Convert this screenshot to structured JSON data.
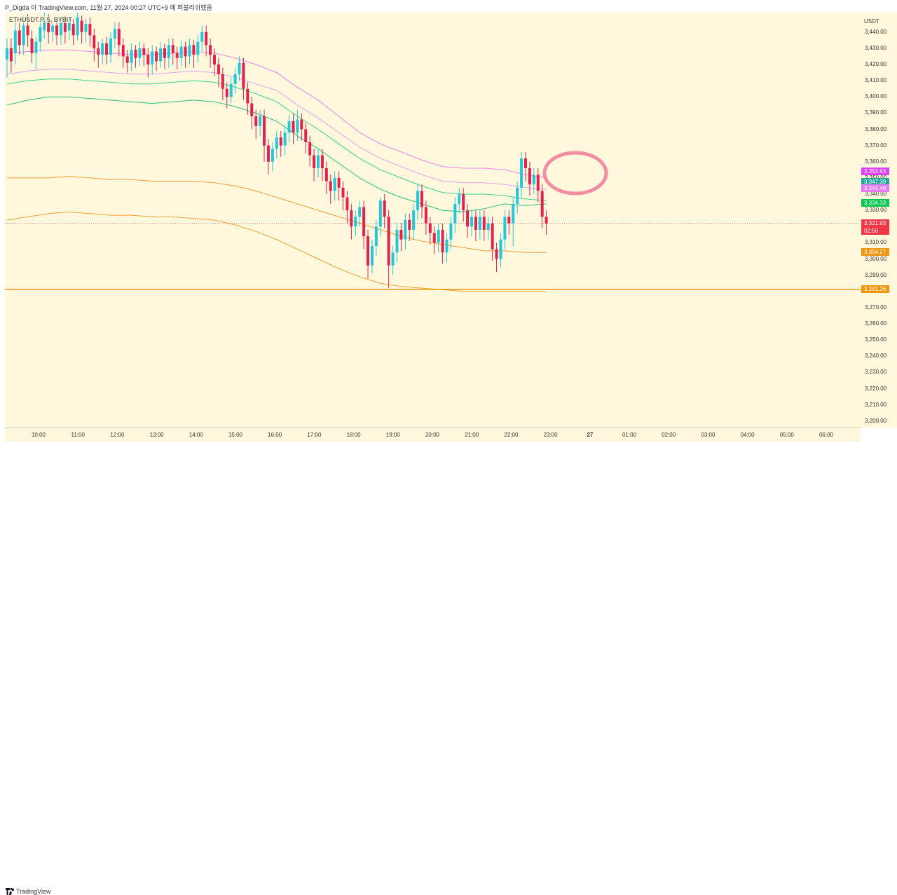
{
  "header": {
    "text": "P_Digda 이 TradingView.com, 11월 27, 2024 00:27 UTC+9 에 퍼블리쉬했음"
  },
  "symbol": {
    "text": "ETHUSDT.P, 5, BYBIT"
  },
  "currency": "USDT",
  "footer": {
    "brand": "TradingView"
  },
  "chart_data": {
    "type": "candlestick",
    "interval": "5",
    "ylim": [
      3196,
      3452
    ],
    "y_ticks": [
      "3,440.00",
      "3,430.00",
      "3,420.00",
      "3,410.00",
      "3,400.00",
      "3,390.00",
      "3,380.00",
      "3,370.00",
      "3,360.00",
      "3,350.00",
      "3,340.00",
      "3,330.00",
      "3,310.00",
      "3,300.00",
      "3,290.00",
      "3,270.00",
      "3,260.00",
      "3,250.00",
      "3,240.00",
      "3,230.00",
      "3,220.00",
      "3,210.00",
      "3,200.00"
    ],
    "x_ticks": [
      "10:00",
      "11:00",
      "12:00",
      "13:00",
      "14:00",
      "15:00",
      "16:00",
      "17:00",
      "18:00",
      "19:00",
      "20:00",
      "21:00",
      "22:00",
      "23:00",
      "27",
      "01:00",
      "02:00",
      "03:00",
      "04:00",
      "05:00",
      "06:00"
    ],
    "price_badges": [
      {
        "label": "3,353.63",
        "value": 3353.63,
        "color": "#e040fb"
      },
      {
        "label": "3,347.39",
        "value": 3347.39,
        "color": "#26a69a"
      },
      {
        "label": "3,343.48",
        "value": 3343.48,
        "color": "#e879f9"
      },
      {
        "label": "3,334.33",
        "value": 3334.33,
        "color": "#00c853"
      },
      {
        "label": "3,321.93",
        "sub": "02:50",
        "value": 3321.93,
        "color": "#f23645"
      },
      {
        "label": "3,304.27",
        "value": 3304.27,
        "color": "#f0950c"
      },
      {
        "label": "3,281.26",
        "value": 3281.26,
        "color": "#f0950c"
      }
    ],
    "horizontal_line": {
      "value": 3281.26,
      "color": "#f0950c"
    },
    "last_price_line": {
      "value": 3321.93
    },
    "colors": {
      "up": "#26c6da",
      "down": "#e0234e",
      "upper_band": "#ee82ee",
      "mid_band": "#3fd18a",
      "orange_band": "#f0a030",
      "highlight_circle": "#f07a9a"
    },
    "candles": [
      [
        3423,
        3430,
        3418,
        3436,
        3412
      ],
      [
        3430,
        3422,
        3418,
        3436,
        3415
      ],
      [
        3427,
        3441,
        3424,
        3449,
        3420
      ],
      [
        3441,
        3432,
        3430,
        3446,
        3426
      ],
      [
        3432,
        3444,
        3428,
        3450,
        3426
      ],
      [
        3444,
        3438,
        3433,
        3451,
        3431
      ],
      [
        3436,
        3427,
        3423,
        3441,
        3421
      ],
      [
        3427,
        3434,
        3422,
        3437,
        3417
      ],
      [
        3434,
        3443,
        3431,
        3447,
        3428
      ],
      [
        3441,
        3448,
        3438,
        3452,
        3436
      ],
      [
        3446,
        3440,
        3436,
        3451,
        3433
      ],
      [
        3440,
        3444,
        3437,
        3448,
        3434
      ],
      [
        3444,
        3438,
        3434,
        3448,
        3432
      ],
      [
        3438,
        3446,
        3435,
        3450,
        3432
      ],
      [
        3446,
        3440,
        3436,
        3450,
        3433
      ],
      [
        3441,
        3446,
        3438,
        3449,
        3435
      ],
      [
        3445,
        3438,
        3434,
        3448,
        3432
      ],
      [
        3438,
        3449,
        3437,
        3452,
        3435
      ],
      [
        3447,
        3440,
        3436,
        3450,
        3433
      ],
      [
        3440,
        3445,
        3438,
        3448,
        3434
      ],
      [
        3445,
        3438,
        3433,
        3449,
        3431
      ],
      [
        3438,
        3430,
        3427,
        3442,
        3422
      ],
      [
        3430,
        3426,
        3421,
        3434,
        3418
      ],
      [
        3426,
        3433,
        3423,
        3436,
        3420
      ],
      [
        3433,
        3426,
        3422,
        3437,
        3420
      ],
      [
        3426,
        3436,
        3424,
        3440,
        3421
      ],
      [
        3436,
        3442,
        3433,
        3446,
        3430
      ],
      [
        3442,
        3432,
        3428,
        3446,
        3425
      ],
      [
        3432,
        3425,
        3421,
        3436,
        3418
      ],
      [
        3425,
        3421,
        3418,
        3429,
        3415
      ],
      [
        3421,
        3429,
        3419,
        3433,
        3416
      ],
      [
        3429,
        3424,
        3421,
        3432,
        3418
      ],
      [
        3424,
        3430,
        3422,
        3434,
        3419
      ],
      [
        3430,
        3426,
        3422,
        3433,
        3419
      ],
      [
        3426,
        3420,
        3416,
        3430,
        3412
      ],
      [
        3420,
        3428,
        3418,
        3432,
        3414
      ],
      [
        3428,
        3422,
        3418,
        3431,
        3416
      ],
      [
        3422,
        3430,
        3420,
        3434,
        3418
      ],
      [
        3430,
        3424,
        3420,
        3433,
        3417
      ],
      [
        3424,
        3432,
        3422,
        3436,
        3418
      ],
      [
        3432,
        3427,
        3423,
        3436,
        3420
      ],
      [
        3427,
        3424,
        3420,
        3431,
        3417
      ],
      [
        3424,
        3431,
        3422,
        3435,
        3419
      ],
      [
        3431,
        3425,
        3421,
        3434,
        3418
      ],
      [
        3425,
        3432,
        3423,
        3436,
        3420
      ],
      [
        3432,
        3426,
        3421,
        3435,
        3418
      ],
      [
        3426,
        3434,
        3424,
        3438,
        3421
      ],
      [
        3434,
        3440,
        3431,
        3444,
        3428
      ],
      [
        3440,
        3432,
        3428,
        3444,
        3425
      ],
      [
        3432,
        3426,
        3422,
        3436,
        3418
      ],
      [
        3426,
        3420,
        3416,
        3430,
        3413
      ],
      [
        3420,
        3414,
        3410,
        3424,
        3406
      ],
      [
        3414,
        3405,
        3402,
        3418,
        3398
      ],
      [
        3405,
        3400,
        3396,
        3409,
        3393
      ],
      [
        3400,
        3408,
        3398,
        3412,
        3396
      ],
      [
        3408,
        3414,
        3405,
        3418,
        3402
      ],
      [
        3414,
        3421,
        3412,
        3425,
        3410
      ],
      [
        3421,
        3405,
        3402,
        3424,
        3398
      ],
      [
        3405,
        3396,
        3392,
        3409,
        3389
      ],
      [
        3396,
        3388,
        3384,
        3400,
        3380
      ],
      [
        3388,
        3382,
        3378,
        3392,
        3374
      ],
      [
        3382,
        3388,
        3379,
        3392,
        3376
      ],
      [
        3388,
        3370,
        3366,
        3392,
        3360
      ],
      [
        3370,
        3360,
        3356,
        3374,
        3352
      ],
      [
        3360,
        3368,
        3357,
        3372,
        3354
      ],
      [
        3368,
        3375,
        3365,
        3379,
        3362
      ],
      [
        3375,
        3370,
        3366,
        3379,
        3363
      ],
      [
        3370,
        3378,
        3367,
        3382,
        3364
      ],
      [
        3378,
        3385,
        3375,
        3389,
        3372
      ],
      [
        3385,
        3378,
        3374,
        3390,
        3371
      ],
      [
        3378,
        3386,
        3376,
        3392,
        3373
      ],
      [
        3386,
        3380,
        3376,
        3390,
        3373
      ],
      [
        3380,
        3372,
        3368,
        3384,
        3365
      ],
      [
        3372,
        3364,
        3360,
        3376,
        3357
      ],
      [
        3364,
        3356,
        3352,
        3368,
        3348
      ],
      [
        3356,
        3364,
        3353,
        3368,
        3350
      ],
      [
        3364,
        3356,
        3352,
        3368,
        3348
      ],
      [
        3356,
        3348,
        3344,
        3360,
        3340
      ],
      [
        3348,
        3342,
        3338,
        3352,
        3334
      ],
      [
        3342,
        3350,
        3339,
        3354,
        3336
      ],
      [
        3350,
        3344,
        3340,
        3354,
        3336
      ],
      [
        3344,
        3338,
        3334,
        3348,
        3330
      ],
      [
        3338,
        3330,
        3326,
        3342,
        3322
      ],
      [
        3330,
        3320,
        3316,
        3334,
        3312
      ],
      [
        3320,
        3326,
        3317,
        3330,
        3314
      ],
      [
        3326,
        3332,
        3323,
        3336,
        3320
      ],
      [
        3332,
        3314,
        3310,
        3336,
        3306
      ],
      [
        3314,
        3296,
        3292,
        3318,
        3288
      ],
      [
        3296,
        3308,
        3294,
        3312,
        3291
      ],
      [
        3308,
        3320,
        3305,
        3324,
        3302
      ],
      [
        3320,
        3336,
        3317,
        3338,
        3314
      ],
      [
        3336,
        3326,
        3322,
        3340,
        3319
      ],
      [
        3326,
        3296,
        3292,
        3330,
        3282
      ],
      [
        3296,
        3304,
        3293,
        3308,
        3290
      ],
      [
        3304,
        3318,
        3301,
        3322,
        3298
      ],
      [
        3318,
        3312,
        3308,
        3322,
        3305
      ],
      [
        3312,
        3324,
        3309,
        3328,
        3306
      ],
      [
        3324,
        3318,
        3314,
        3328,
        3311
      ],
      [
        3318,
        3330,
        3315,
        3334,
        3312
      ],
      [
        3330,
        3342,
        3327,
        3346,
        3324
      ],
      [
        3342,
        3332,
        3328,
        3346,
        3325
      ],
      [
        3332,
        3322,
        3318,
        3336,
        3315
      ],
      [
        3322,
        3316,
        3312,
        3326,
        3309
      ],
      [
        3316,
        3310,
        3306,
        3320,
        3303
      ],
      [
        3310,
        3318,
        3307,
        3322,
        3304
      ],
      [
        3318,
        3304,
        3300,
        3322,
        3297
      ],
      [
        3304,
        3312,
        3301,
        3316,
        3298
      ],
      [
        3312,
        3322,
        3309,
        3326,
        3306
      ],
      [
        3322,
        3334,
        3319,
        3338,
        3316
      ],
      [
        3334,
        3340,
        3331,
        3344,
        3328
      ],
      [
        3340,
        3330,
        3326,
        3344,
        3323
      ],
      [
        3330,
        3320,
        3316,
        3334,
        3313
      ],
      [
        3320,
        3326,
        3317,
        3330,
        3314
      ],
      [
        3326,
        3318,
        3314,
        3330,
        3311
      ],
      [
        3318,
        3326,
        3315,
        3330,
        3312
      ],
      [
        3326,
        3318,
        3314,
        3330,
        3311
      ],
      [
        3318,
        3322,
        3315,
        3326,
        3312
      ],
      [
        3322,
        3306,
        3302,
        3326,
        3299
      ],
      [
        3306,
        3300,
        3296,
        3310,
        3292
      ],
      [
        3300,
        3312,
        3298,
        3316,
        3295
      ],
      [
        3312,
        3326,
        3309,
        3330,
        3306
      ],
      [
        3326,
        3322,
        3318,
        3330,
        3315
      ],
      [
        3322,
        3334,
        3319,
        3338,
        3308
      ],
      [
        3334,
        3344,
        3331,
        3348,
        3328
      ],
      [
        3344,
        3362,
        3341,
        3366,
        3338
      ],
      [
        3362,
        3356,
        3352,
        3366,
        3348
      ],
      [
        3356,
        3346,
        3342,
        3360,
        3339
      ],
      [
        3346,
        3352,
        3343,
        3356,
        3340
      ],
      [
        3352,
        3342,
        3338,
        3356,
        3335
      ],
      [
        3342,
        3326,
        3322,
        3346,
        3319
      ],
      [
        3326,
        3321.93,
        3318,
        3330,
        3315
      ]
    ],
    "bands": {
      "upper_outer": [
        3427,
        3428,
        3429,
        3429,
        3428,
        3427,
        3426,
        3426,
        3427,
        3428,
        3427,
        3424,
        3420,
        3415,
        3406,
        3398,
        3388,
        3378,
        3371,
        3366,
        3361,
        3357,
        3356,
        3356,
        3355,
        3352,
        3350
      ],
      "upper_inner": [
        3414,
        3416,
        3417,
        3417,
        3416,
        3415,
        3414,
        3414,
        3415,
        3416,
        3415,
        3412,
        3408,
        3404,
        3395,
        3387,
        3378,
        3369,
        3362,
        3357,
        3352,
        3348,
        3347,
        3347,
        3346,
        3344,
        3343
      ],
      "mid_upper": [
        3408,
        3410,
        3411,
        3411,
        3410,
        3409,
        3408,
        3408,
        3409,
        3410,
        3409,
        3406,
        3402,
        3397,
        3388,
        3380,
        3371,
        3362,
        3355,
        3350,
        3345,
        3341,
        3340,
        3340,
        3339,
        3337,
        3336
      ],
      "mid_lower": [
        3395,
        3398,
        3400,
        3400,
        3399,
        3398,
        3397,
        3396,
        3397,
        3398,
        3397,
        3394,
        3390,
        3385,
        3376,
        3368,
        3359,
        3350,
        3343,
        3338,
        3334,
        3330,
        3329,
        3331,
        3334,
        3333,
        3334
      ],
      "orange_upper": [
        3350,
        3350,
        3350,
        3351,
        3350,
        3349,
        3349,
        3348,
        3348,
        3348,
        3347,
        3345,
        3342,
        3338,
        3334,
        3330,
        3326,
        3322,
        3318,
        3314,
        3311,
        3309,
        3307,
        3305,
        3305,
        3304,
        3304
      ],
      "orange_lower": [
        3324,
        3326,
        3328,
        3329,
        3328,
        3327,
        3327,
        3326,
        3326,
        3325,
        3324,
        3321,
        3317,
        3312,
        3306,
        3300,
        3294,
        3289,
        3285,
        3283,
        3282,
        3281,
        3280,
        3280,
        3280,
        3280,
        3280
      ]
    }
  }
}
